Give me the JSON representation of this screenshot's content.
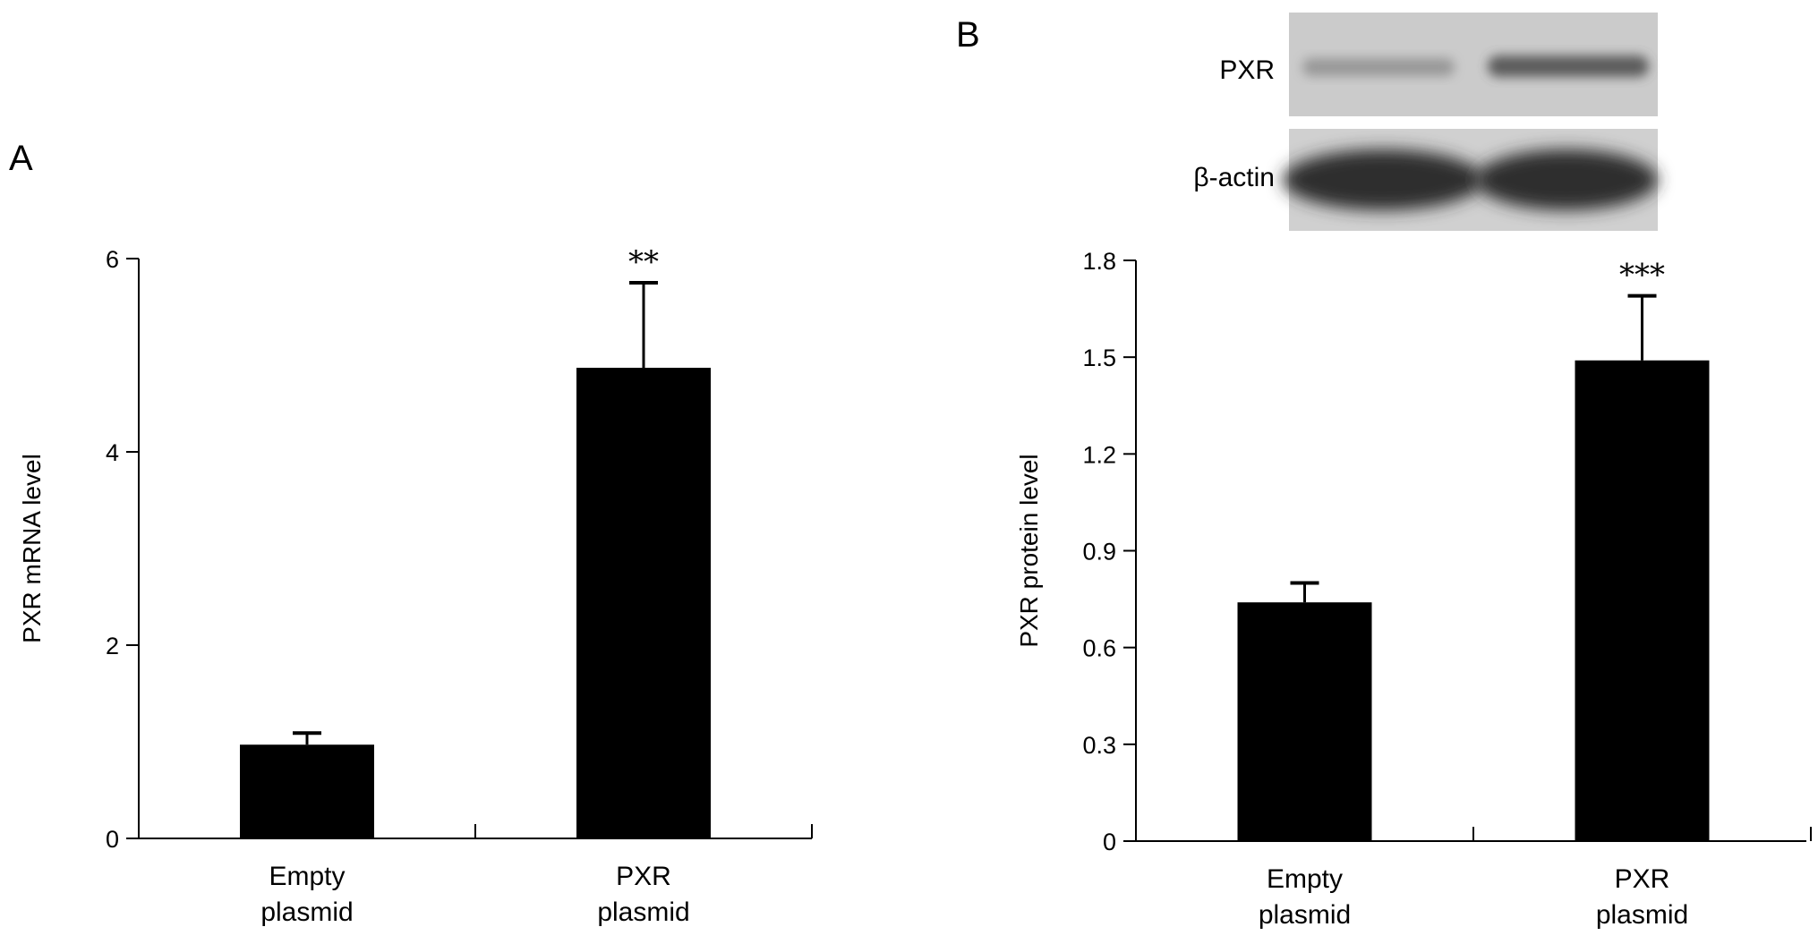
{
  "panels": [
    {
      "letter": "A",
      "chart_data": {
        "type": "bar",
        "categories": [
          [
            "Empty",
            "plasmid"
          ],
          [
            "PXR",
            "plasmid"
          ]
        ],
        "values": [
          0.97,
          4.87
        ],
        "errors": [
          0.12,
          0.88
        ],
        "significance": [
          "",
          "**"
        ],
        "ylabel": "PXR mRNA level",
        "xlabel": "",
        "title": "",
        "ylim": [
          0,
          6
        ],
        "yticks": [
          "0",
          "2",
          "4",
          "6"
        ],
        "grid": false,
        "bar_color": "#000000"
      }
    },
    {
      "letter": "B",
      "blot": {
        "bands": [
          {
            "label": "PXR",
            "intensities": [
              0.25,
              0.55
            ]
          },
          {
            "label": "β-actin",
            "intensities": [
              0.9,
              0.9
            ]
          }
        ]
      },
      "chart_data": {
        "type": "bar",
        "categories": [
          [
            "Empty",
            "plasmid"
          ],
          [
            "PXR",
            "plasmid"
          ]
        ],
        "values": [
          0.74,
          1.49
        ],
        "errors": [
          0.06,
          0.2
        ],
        "significance": [
          "",
          "***"
        ],
        "ylabel": "PXR protein level",
        "xlabel": "",
        "title": "",
        "ylim": [
          0,
          1.8
        ],
        "yticks": [
          "0",
          "0.3",
          "0.6",
          "0.9",
          "1.2",
          "1.5",
          "1.8"
        ],
        "grid": false,
        "bar_color": "#000000"
      }
    }
  ]
}
